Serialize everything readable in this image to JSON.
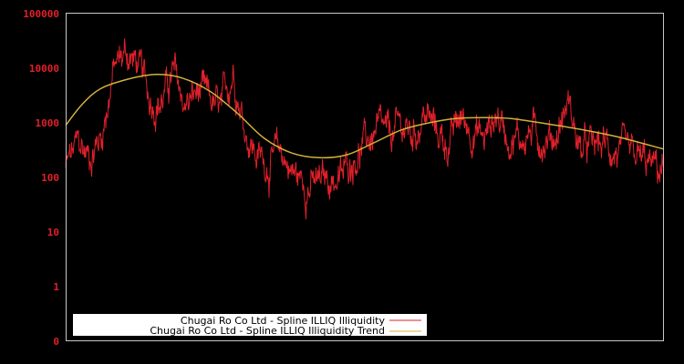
{
  "chart_data": {
    "type": "line",
    "title": "",
    "xlabel": "",
    "ylabel": "",
    "yscale": "log",
    "ylim": [
      0.1,
      100000
    ],
    "y_ticks": [
      "100000",
      "10000",
      "1000",
      "100",
      "10",
      "1",
      "0"
    ],
    "x_ticks": [],
    "grid": false,
    "legend_position": "lower-left",
    "colors": {
      "background": "#000000",
      "frame": "#c8c8c8",
      "tick_labels": "#e0202a",
      "series_illiq": "#e0202a",
      "series_trend": "#d4b03a",
      "legend_bg": "#ffffff"
    },
    "series": [
      {
        "name": "Chugai Ro Co Ltd - Spline ILLIQ Illiquidity",
        "color": "#e0202a",
        "x_frac": [
          0.0,
          0.02,
          0.04,
          0.06,
          0.08,
          0.1,
          0.12,
          0.14,
          0.16,
          0.18,
          0.2,
          0.22,
          0.24,
          0.26,
          0.28,
          0.3,
          0.32,
          0.34,
          0.36,
          0.38,
          0.4,
          0.42,
          0.44,
          0.46,
          0.48,
          0.5,
          0.52,
          0.54,
          0.56,
          0.58,
          0.6,
          0.62,
          0.64,
          0.66,
          0.68,
          0.7,
          0.72,
          0.74,
          0.76,
          0.78,
          0.8,
          0.82,
          0.84,
          0.86,
          0.88,
          0.9,
          0.92,
          0.94,
          0.96,
          0.98,
          1.0
        ],
        "values": [
          150,
          400,
          250,
          600,
          9000,
          20000,
          12000,
          3000,
          2500,
          8000,
          2000,
          3500,
          2500,
          1500,
          10000,
          800,
          250,
          180,
          300,
          120,
          80,
          70,
          100,
          90,
          250,
          400,
          700,
          500,
          900,
          600,
          1500,
          700,
          400,
          1200,
          800,
          500,
          1500,
          600,
          500,
          700,
          500,
          600,
          2500,
          300,
          350,
          400,
          300,
          200,
          200,
          150,
          130
        ]
      },
      {
        "name": "Chugai Ro Co Ltd - Spline ILLIQ Illiquidity Trend",
        "color": "#d4b03a",
        "x_frac": [
          0.0,
          0.027,
          0.058,
          0.104,
          0.152,
          0.195,
          0.241,
          0.287,
          0.332,
          0.378,
          0.424,
          0.47,
          0.515,
          0.561,
          0.607,
          0.652,
          0.698,
          0.744,
          0.805,
          0.866,
          0.927,
          1.0
        ],
        "values": [
          900,
          2150,
          4200,
          6300,
          7700,
          6600,
          3800,
          1500,
          520,
          280,
          230,
          260,
          430,
          740,
          1000,
          1200,
          1250,
          1200,
          960,
          740,
          540,
          330
        ]
      }
    ]
  },
  "legend": {
    "items": [
      {
        "label": "Chugai Ro Co Ltd - Spline ILLIQ Illiquidity",
        "color": "#e0202a"
      },
      {
        "label": "Chugai Ro Co Ltd - Spline ILLIQ Illiquidity Trend",
        "color": "#d4b03a"
      }
    ]
  }
}
